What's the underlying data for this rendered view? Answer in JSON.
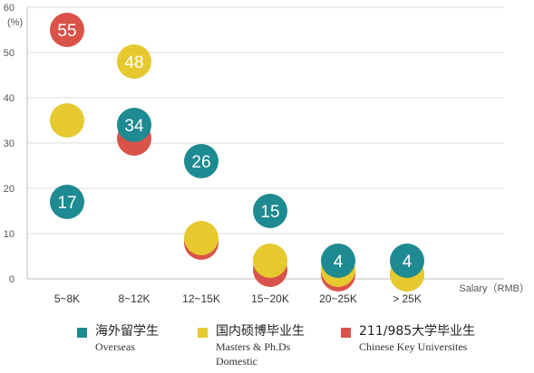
{
  "chart_data": {
    "type": "scatter",
    "categories": [
      "5~8K",
      "8~12K",
      "12~15K",
      "15~20K",
      "20~25K",
      "> 25K"
    ],
    "ylim": [
      0,
      60
    ],
    "yticks": [
      0,
      10,
      20,
      30,
      40,
      50,
      60
    ],
    "ylabel": "(%)",
    "xlabel": "Salary（RMB）",
    "grid": true,
    "legend_position": "bottom",
    "series": [
      {
        "name": "211/985大学毕业生",
        "subtitle": "Chinese Key Universites",
        "color": "#d9534a",
        "values": [
          55,
          31,
          8,
          2,
          1,
          1
        ],
        "value_labels": [
          "55",
          "",
          "",
          "",
          "",
          ""
        ]
      },
      {
        "name": "国内硕博毕业生",
        "subtitle": "Masters & Ph.Ds Domestic",
        "color": "#e6c92e",
        "values": [
          35,
          48,
          9,
          4,
          2,
          1
        ],
        "value_labels": [
          "",
          "48",
          "",
          "",
          "",
          ""
        ]
      },
      {
        "name": "海外留学生",
        "subtitle": "Overseas",
        "color": "#1e8a91",
        "values": [
          17,
          34,
          26,
          15,
          4,
          4
        ],
        "value_labels": [
          "17",
          "34",
          "26",
          "15",
          "4",
          "4"
        ]
      }
    ]
  },
  "legend": [
    {
      "title": "海外留学生",
      "sub1": "Overseas",
      "sub2": "",
      "color": "#1e8a91"
    },
    {
      "title": "国内硕博毕业生",
      "sub1": "Masters & Ph.Ds",
      "sub2": "Domestic",
      "color": "#e6c92e"
    },
    {
      "title": "211/985大学毕业生",
      "sub1": "Chinese Key Universites",
      "sub2": "",
      "color": "#d9534a"
    }
  ]
}
